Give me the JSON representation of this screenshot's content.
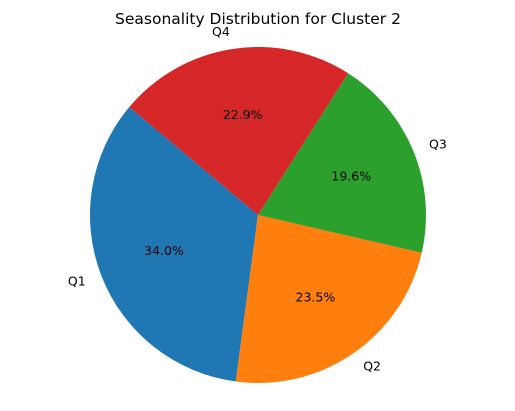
{
  "chart_data": {
    "type": "pie",
    "title": "Seasonality Distribution for Cluster 2",
    "categories": [
      "Q1",
      "Q2",
      "Q3",
      "Q4"
    ],
    "values": [
      34.0,
      23.5,
      19.6,
      22.9
    ],
    "value_labels": [
      "34.0%",
      "23.5%",
      "19.6%",
      "22.9%"
    ],
    "colors": [
      "#1f77b4",
      "#ff7f0e",
      "#2ca02c",
      "#d62728"
    ],
    "start_angle_deg": 140,
    "direction": "counterclockwise"
  }
}
